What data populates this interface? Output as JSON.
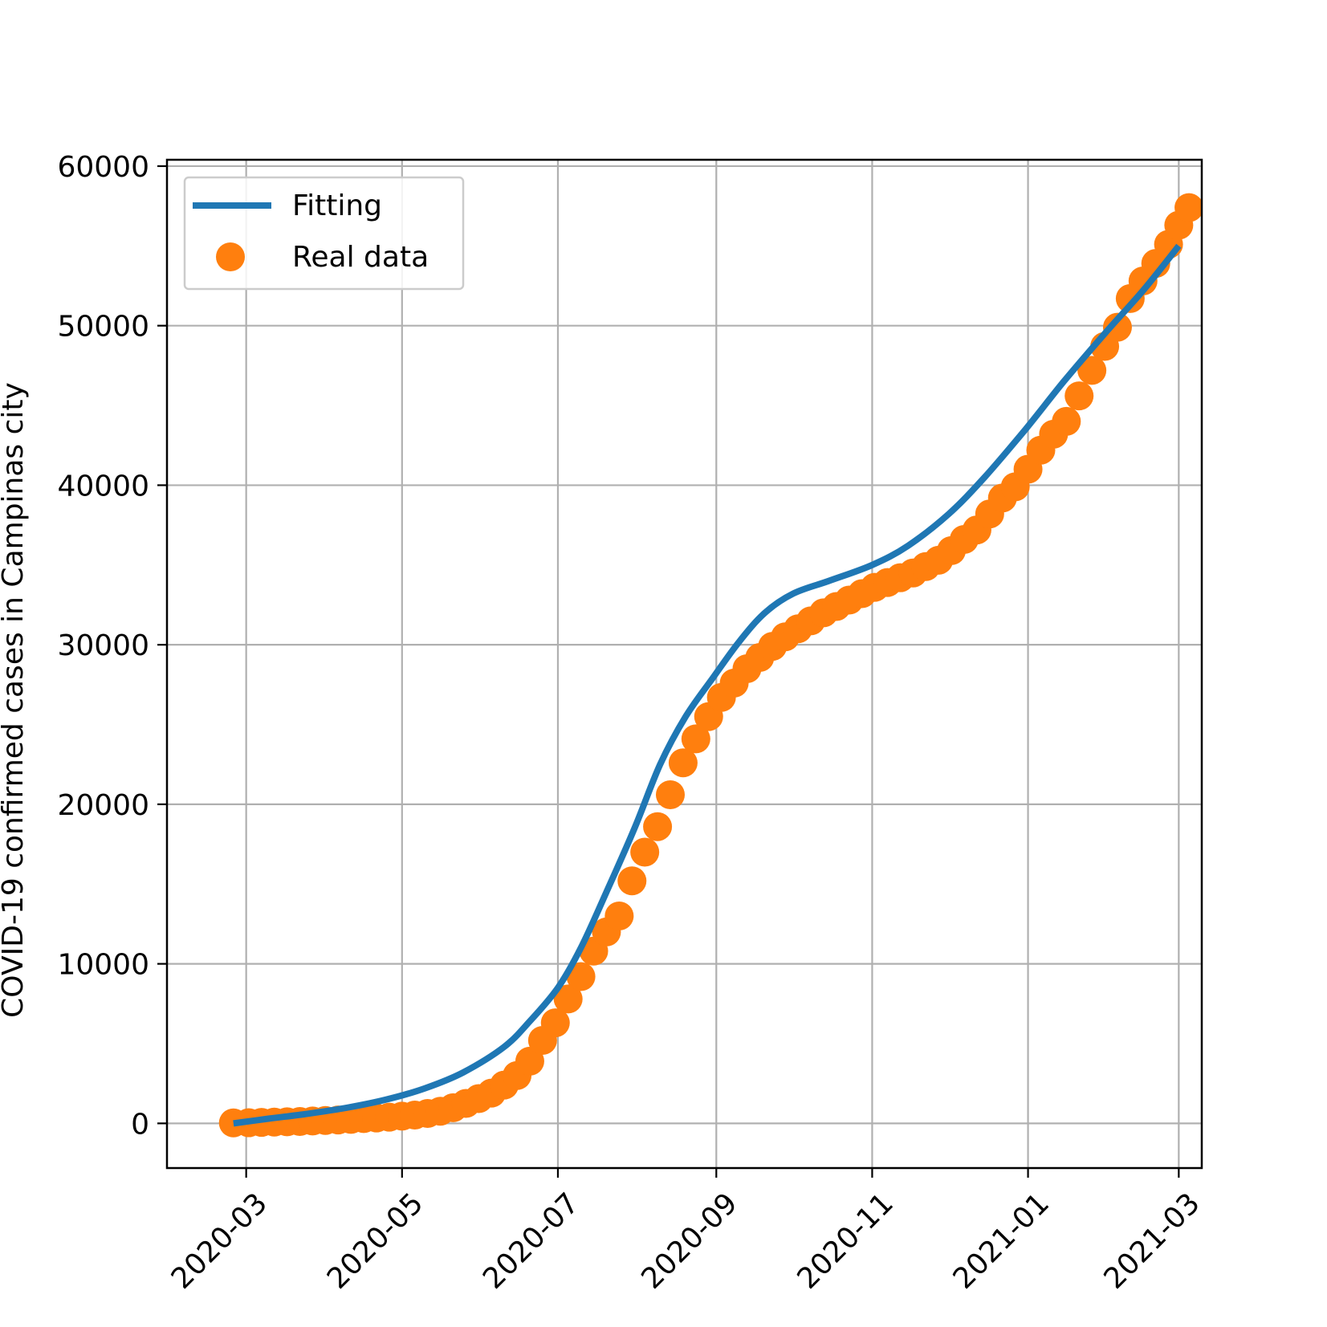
{
  "chart_data": {
    "type": "line",
    "ylabel": "COVID-19 confirmed cases in Campinas city",
    "xlabel": "",
    "ylim": [
      -2800,
      60400
    ],
    "xlim": [
      "2020-01-30",
      "2021-03-10"
    ],
    "y_ticks": [
      0,
      10000,
      20000,
      30000,
      40000,
      50000,
      60000
    ],
    "x_ticks": [
      "2020-03",
      "2020-05",
      "2020-07",
      "2020-09",
      "2020-11",
      "2021-01",
      "2021-03"
    ],
    "x_tick_dates": [
      "2020-03-01",
      "2020-05-01",
      "2020-07-01",
      "2020-09-01",
      "2020-11-01",
      "2021-01-01",
      "2021-03-01"
    ],
    "grid": true,
    "legend_placement": "top-left",
    "series": [
      {
        "name": "Fitting",
        "kind": "line",
        "color": "#1f77b4",
        "points": [
          [
            "2020-02-25",
            0
          ],
          [
            "2020-03-10",
            300
          ],
          [
            "2020-03-25",
            600
          ],
          [
            "2020-04-10",
            1000
          ],
          [
            "2020-04-25",
            1500
          ],
          [
            "2020-05-10",
            2200
          ],
          [
            "2020-05-25",
            3200
          ],
          [
            "2020-06-10",
            4800
          ],
          [
            "2020-06-20",
            6400
          ],
          [
            "2020-07-01",
            8500
          ],
          [
            "2020-07-10",
            11000
          ],
          [
            "2020-07-20",
            14500
          ],
          [
            "2020-07-31",
            18500
          ],
          [
            "2020-08-10",
            22500
          ],
          [
            "2020-08-20",
            25500
          ],
          [
            "2020-08-31",
            28000
          ],
          [
            "2020-09-10",
            30200
          ],
          [
            "2020-09-20",
            32000
          ],
          [
            "2020-10-01",
            33200
          ],
          [
            "2020-10-15",
            34000
          ],
          [
            "2020-11-01",
            35000
          ],
          [
            "2020-11-15",
            36200
          ],
          [
            "2020-12-01",
            38200
          ],
          [
            "2020-12-15",
            40500
          ],
          [
            "2020-12-31",
            43500
          ],
          [
            "2021-01-15",
            46500
          ],
          [
            "2021-01-31",
            49500
          ],
          [
            "2021-02-15",
            52200
          ],
          [
            "2021-03-01",
            55000
          ]
        ]
      },
      {
        "name": "Real data",
        "kind": "scatter",
        "color": "#ff7f0e",
        "points": [
          [
            "2020-02-25",
            30
          ],
          [
            "2020-03-02",
            40
          ],
          [
            "2020-03-07",
            60
          ],
          [
            "2020-03-12",
            80
          ],
          [
            "2020-03-17",
            100
          ],
          [
            "2020-03-22",
            120
          ],
          [
            "2020-03-27",
            150
          ],
          [
            "2020-04-01",
            180
          ],
          [
            "2020-04-06",
            210
          ],
          [
            "2020-04-11",
            250
          ],
          [
            "2020-04-16",
            300
          ],
          [
            "2020-04-21",
            340
          ],
          [
            "2020-04-26",
            390
          ],
          [
            "2020-05-01",
            450
          ],
          [
            "2020-05-06",
            520
          ],
          [
            "2020-05-11",
            620
          ],
          [
            "2020-05-16",
            760
          ],
          [
            "2020-05-21",
            980
          ],
          [
            "2020-05-26",
            1250
          ],
          [
            "2020-05-31",
            1550
          ],
          [
            "2020-06-05",
            1900
          ],
          [
            "2020-06-10",
            2400
          ],
          [
            "2020-06-15",
            3000
          ],
          [
            "2020-06-20",
            3900
          ],
          [
            "2020-06-25",
            5200
          ],
          [
            "2020-06-30",
            6300
          ],
          [
            "2020-07-05",
            7800
          ],
          [
            "2020-07-10",
            9200
          ],
          [
            "2020-07-15",
            10800
          ],
          [
            "2020-07-20",
            12000
          ],
          [
            "2020-07-25",
            13000
          ],
          [
            "2020-07-30",
            15200
          ],
          [
            "2020-08-04",
            17000
          ],
          [
            "2020-08-09",
            18600
          ],
          [
            "2020-08-14",
            20600
          ],
          [
            "2020-08-19",
            22600
          ],
          [
            "2020-08-24",
            24100
          ],
          [
            "2020-08-29",
            25500
          ],
          [
            "2020-09-03",
            26700
          ],
          [
            "2020-09-08",
            27600
          ],
          [
            "2020-09-13",
            28500
          ],
          [
            "2020-09-18",
            29200
          ],
          [
            "2020-09-23",
            29900
          ],
          [
            "2020-09-28",
            30500
          ],
          [
            "2020-10-03",
            31000
          ],
          [
            "2020-10-08",
            31500
          ],
          [
            "2020-10-13",
            32000
          ],
          [
            "2020-10-18",
            32400
          ],
          [
            "2020-10-23",
            32800
          ],
          [
            "2020-10-28",
            33200
          ],
          [
            "2020-11-02",
            33600
          ],
          [
            "2020-11-07",
            33900
          ],
          [
            "2020-11-12",
            34200
          ],
          [
            "2020-11-17",
            34500
          ],
          [
            "2020-11-22",
            34900
          ],
          [
            "2020-11-27",
            35300
          ],
          [
            "2020-12-02",
            35900
          ],
          [
            "2020-12-07",
            36600
          ],
          [
            "2020-12-12",
            37200
          ],
          [
            "2020-12-17",
            38200
          ],
          [
            "2020-12-22",
            39200
          ],
          [
            "2020-12-27",
            39900
          ],
          [
            "2021-01-01",
            41000
          ],
          [
            "2021-01-06",
            42200
          ],
          [
            "2021-01-11",
            43200
          ],
          [
            "2021-01-16",
            44000
          ],
          [
            "2021-01-21",
            45600
          ],
          [
            "2021-01-26",
            47200
          ],
          [
            "2021-01-31",
            48700
          ],
          [
            "2021-02-05",
            49900
          ],
          [
            "2021-02-10",
            51700
          ],
          [
            "2021-02-15",
            52800
          ],
          [
            "2021-02-20",
            53900
          ],
          [
            "2021-02-25",
            55100
          ],
          [
            "2021-03-01",
            56300
          ],
          [
            "2021-03-05",
            57400
          ]
        ]
      }
    ]
  }
}
